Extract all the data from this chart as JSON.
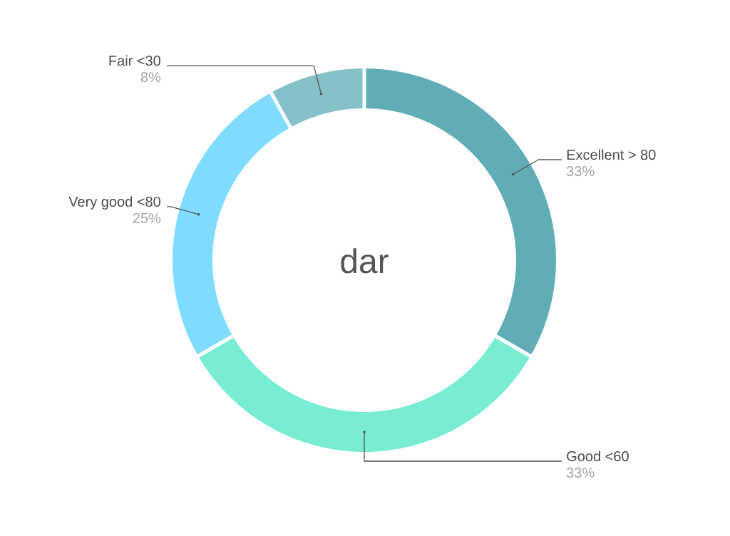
{
  "chart_data": {
    "type": "donut",
    "title": "dar",
    "categories": [
      "Excellent > 80",
      "Good <60",
      "Very good <80",
      "Fair <30"
    ],
    "values": [
      33,
      33,
      25,
      8
    ],
    "colors": [
      "#61adb7",
      "#78edd4",
      "#80dcff",
      "#86c0c8"
    ],
    "value_labels": [
      "33%",
      "33%",
      "25%",
      "8%"
    ]
  }
}
